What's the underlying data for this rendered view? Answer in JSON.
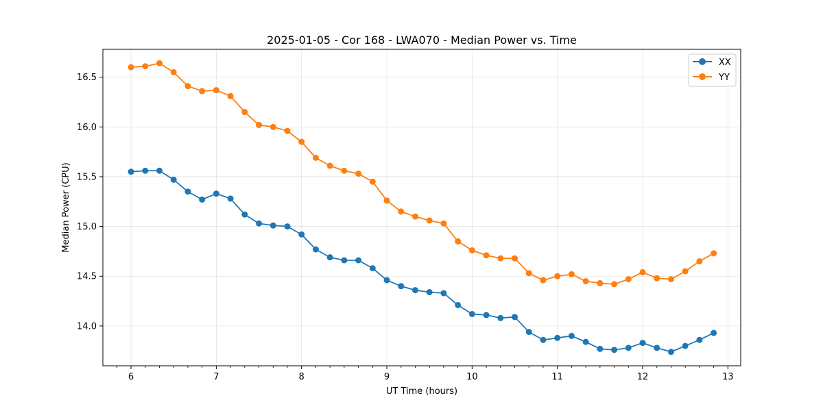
{
  "chart_data": {
    "type": "line",
    "title": "2025-01-05 - Cor 168 - LWA070 - Median Power vs. Time",
    "xlabel": "UT Time (hours)",
    "ylabel": "Median Power (CPU)",
    "xlim": [
      5.67,
      13.15
    ],
    "ylim": [
      13.6,
      16.78
    ],
    "xticks": [
      6,
      7,
      8,
      9,
      10,
      11,
      12,
      13
    ],
    "xtick_labels": [
      "6",
      "7",
      "8",
      "9",
      "10",
      "11",
      "12",
      "13"
    ],
    "yticks": [
      14.0,
      14.5,
      15.0,
      15.5,
      16.0,
      16.5
    ],
    "ytick_labels": [
      "14.0",
      "14.5",
      "15.0",
      "15.5",
      "16.0",
      "16.5"
    ],
    "grid": true,
    "legend_position": "top-right",
    "x": [
      6.0,
      6.1667,
      6.3333,
      6.5,
      6.6667,
      6.8333,
      7.0,
      7.1667,
      7.3333,
      7.5,
      7.6667,
      7.8333,
      8.0,
      8.1667,
      8.3333,
      8.5,
      8.6667,
      8.8333,
      9.0,
      9.1667,
      9.3333,
      9.5,
      9.6667,
      9.8333,
      10.0,
      10.1667,
      10.3333,
      10.5,
      10.6667,
      10.8333,
      11.0,
      11.1667,
      11.3333,
      11.5,
      11.6667,
      11.8333,
      12.0,
      12.1667,
      12.3333,
      12.5,
      12.6667,
      12.8333
    ],
    "series": [
      {
        "name": "XX",
        "color": "#1f77b4",
        "values": [
          15.55,
          15.56,
          15.56,
          15.47,
          15.35,
          15.27,
          15.33,
          15.28,
          15.12,
          15.03,
          15.01,
          15.0,
          14.92,
          14.77,
          14.69,
          14.66,
          14.66,
          14.58,
          14.46,
          14.4,
          14.36,
          14.34,
          14.33,
          14.21,
          14.12,
          14.11,
          14.08,
          14.09,
          13.94,
          13.86,
          13.88,
          13.9,
          13.84,
          13.77,
          13.76,
          13.78,
          13.83,
          13.78,
          13.74,
          13.8,
          13.86,
          13.93
        ]
      },
      {
        "name": "YY",
        "color": "#ff7f0e",
        "values": [
          16.6,
          16.61,
          16.64,
          16.55,
          16.41,
          16.36,
          16.37,
          16.31,
          16.15,
          16.02,
          16.0,
          15.96,
          15.85,
          15.69,
          15.61,
          15.56,
          15.53,
          15.45,
          15.26,
          15.15,
          15.1,
          15.06,
          15.03,
          14.85,
          14.76,
          14.71,
          14.68,
          14.68,
          14.53,
          14.46,
          14.5,
          14.52,
          14.45,
          14.43,
          14.42,
          14.47,
          14.54,
          14.48,
          14.47,
          14.55,
          14.65,
          14.73
        ]
      }
    ]
  }
}
